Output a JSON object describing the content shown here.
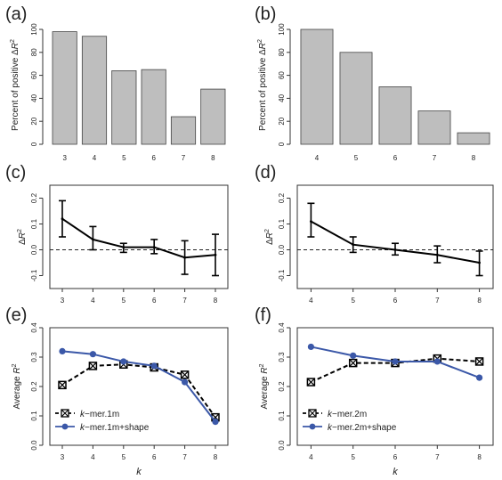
{
  "figure": {
    "panel_label_format": "({letter})"
  },
  "chart_data": [
    {
      "id": "a",
      "panel": "a",
      "type": "bar",
      "categories": [
        "3",
        "4",
        "5",
        "6",
        "7",
        "8"
      ],
      "values": [
        98,
        94,
        64,
        65,
        24,
        48
      ],
      "ylabel": "Percent of positive ΔR²",
      "xlabel": "",
      "ylim": [
        0,
        100
      ],
      "yticks": [
        0,
        20,
        40,
        60,
        80,
        100
      ],
      "color": "#bebebe"
    },
    {
      "id": "b",
      "panel": "b",
      "type": "bar",
      "categories": [
        "4",
        "5",
        "6",
        "7",
        "8"
      ],
      "values": [
        100,
        80,
        50,
        29,
        10
      ],
      "ylabel": "Percent of positive ΔR²",
      "xlabel": "",
      "ylim": [
        0,
        100
      ],
      "yticks": [
        0,
        20,
        40,
        60,
        80,
        100
      ],
      "color": "#bebebe"
    },
    {
      "id": "c",
      "panel": "c",
      "type": "line",
      "x": [
        "3",
        "4",
        "5",
        "6",
        "7",
        "8"
      ],
      "series": [
        {
          "values": [
            0.12,
            0.04,
            0.01,
            0.01,
            -0.03,
            -0.02
          ],
          "err_low": [
            0.05,
            0.0,
            -0.01,
            -0.015,
            -0.095,
            -0.1
          ],
          "err_high": [
            0.19,
            0.09,
            0.025,
            0.04,
            0.035,
            0.06
          ],
          "color": "#000000"
        }
      ],
      "reference_line": 0,
      "ylabel": "ΔR²",
      "xlabel": "",
      "ylim": [
        -0.15,
        0.25
      ],
      "yticks": [
        -0.1,
        0.0,
        0.1,
        0.2
      ]
    },
    {
      "id": "d",
      "panel": "d",
      "type": "line",
      "x": [
        "4",
        "5",
        "6",
        "7",
        "8"
      ],
      "series": [
        {
          "values": [
            0.11,
            0.02,
            0.0,
            -0.02,
            -0.05
          ],
          "err_low": [
            0.05,
            -0.01,
            -0.02,
            -0.05,
            -0.1
          ],
          "err_high": [
            0.18,
            0.05,
            0.025,
            0.015,
            -0.005
          ],
          "color": "#000000"
        }
      ],
      "reference_line": 0,
      "ylabel": "ΔR²",
      "xlabel": "",
      "ylim": [
        -0.15,
        0.25
      ],
      "yticks": [
        -0.1,
        0.0,
        0.1,
        0.2
      ]
    },
    {
      "id": "e",
      "panel": "e",
      "type": "line",
      "x": [
        "3",
        "4",
        "5",
        "6",
        "7",
        "8"
      ],
      "series": [
        {
          "name": "k−mer.1m",
          "values": [
            0.205,
            0.27,
            0.275,
            0.265,
            0.24,
            0.095
          ],
          "color": "#000000",
          "style": "dashed",
          "marker": "square"
        },
        {
          "name": "k−mer.1m+shape",
          "values": [
            0.32,
            0.31,
            0.285,
            0.27,
            0.215,
            0.08
          ],
          "color": "#3b58a8",
          "style": "solid",
          "marker": "circle"
        }
      ],
      "ylabel": "Average R²",
      "xlabel": "k",
      "ylim": [
        0,
        0.4
      ],
      "yticks": [
        0.0,
        0.1,
        0.2,
        0.3,
        0.4
      ],
      "legend": "bottom-left"
    },
    {
      "id": "f",
      "panel": "f",
      "type": "line",
      "x": [
        "4",
        "5",
        "6",
        "7",
        "8"
      ],
      "series": [
        {
          "name": "k−mer.2m",
          "values": [
            0.215,
            0.28,
            0.28,
            0.295,
            0.285
          ],
          "color": "#000000",
          "style": "dashed",
          "marker": "square"
        },
        {
          "name": "k−mer.2m+shape",
          "values": [
            0.335,
            0.305,
            0.285,
            0.285,
            0.23
          ],
          "color": "#3b58a8",
          "style": "solid",
          "marker": "circle"
        }
      ],
      "ylabel": "Average R²",
      "xlabel": "k",
      "ylim": [
        0,
        0.4
      ],
      "yticks": [
        0.0,
        0.1,
        0.2,
        0.3,
        0.4
      ],
      "legend": "bottom-left"
    }
  ]
}
